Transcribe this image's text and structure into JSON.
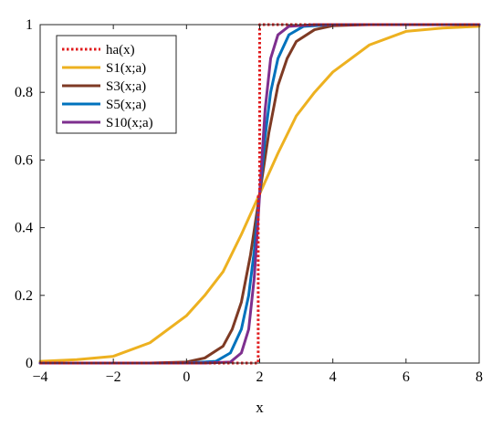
{
  "chart_data": {
    "type": "line",
    "title": "",
    "xlabel": "x",
    "ylabel": "",
    "xlim": [
      -4,
      8
    ],
    "ylim": [
      0,
      1
    ],
    "xticks": [
      -4,
      -2,
      0,
      2,
      4,
      6,
      8
    ],
    "yticks": [
      0,
      0.2,
      0.4,
      0.6,
      0.8,
      1
    ],
    "xtick_labels": [
      "−4",
      "−2",
      "0",
      "2",
      "4",
      "6",
      "8"
    ],
    "ytick_labels": [
      "0",
      "0.2",
      "0.4",
      "0.6",
      "0.8",
      "1"
    ],
    "grid": false,
    "legend_position": "top-left",
    "series": [
      {
        "name": "ha(x)",
        "color": "#E0191B",
        "style": "dotted",
        "x": [
          -4,
          1.96,
          1.96,
          2.0,
          2.0,
          8
        ],
        "y": [
          0,
          0,
          0.5,
          0.5,
          1,
          1
        ]
      },
      {
        "name": "S1(x;a)",
        "color": "#EDB120",
        "style": "solid",
        "x": [
          -4,
          -3,
          -2,
          -1,
          0,
          0.5,
          1,
          1.5,
          2,
          2.5,
          3,
          3.5,
          4,
          5,
          6,
          7,
          8
        ],
        "y": [
          0.005,
          0.01,
          0.02,
          0.06,
          0.14,
          0.2,
          0.27,
          0.38,
          0.5,
          0.62,
          0.73,
          0.8,
          0.86,
          0.94,
          0.98,
          0.99,
          0.995
        ]
      },
      {
        "name": "S3(x;a)",
        "color": "#7E3A24",
        "style": "solid",
        "x": [
          -4,
          -1,
          0,
          0.5,
          1,
          1.25,
          1.5,
          1.75,
          2,
          2.25,
          2.5,
          2.75,
          3,
          3.5,
          4,
          5,
          8
        ],
        "y": [
          0,
          0,
          0.003,
          0.015,
          0.05,
          0.1,
          0.18,
          0.32,
          0.5,
          0.68,
          0.82,
          0.9,
          0.95,
          0.985,
          0.997,
          1,
          1
        ]
      },
      {
        "name": "S5(x;a)",
        "color": "#0072BD",
        "style": "solid",
        "x": [
          -4,
          0,
          0.8,
          1.2,
          1.5,
          1.7,
          1.85,
          2,
          2.15,
          2.3,
          2.5,
          2.8,
          3.2,
          4,
          8
        ],
        "y": [
          0,
          0,
          0.005,
          0.03,
          0.1,
          0.2,
          0.33,
          0.5,
          0.67,
          0.8,
          0.9,
          0.97,
          0.995,
          1,
          1
        ]
      },
      {
        "name": "S10(x;a)",
        "color": "#7E2F8E",
        "style": "solid",
        "x": [
          -4,
          0.5,
          1.2,
          1.5,
          1.7,
          1.85,
          1.93,
          2,
          2.07,
          2.15,
          2.3,
          2.5,
          2.8,
          3.5,
          8
        ],
        "y": [
          0,
          0,
          0.003,
          0.03,
          0.1,
          0.25,
          0.38,
          0.5,
          0.62,
          0.75,
          0.9,
          0.97,
          0.995,
          1,
          1
        ]
      }
    ]
  }
}
